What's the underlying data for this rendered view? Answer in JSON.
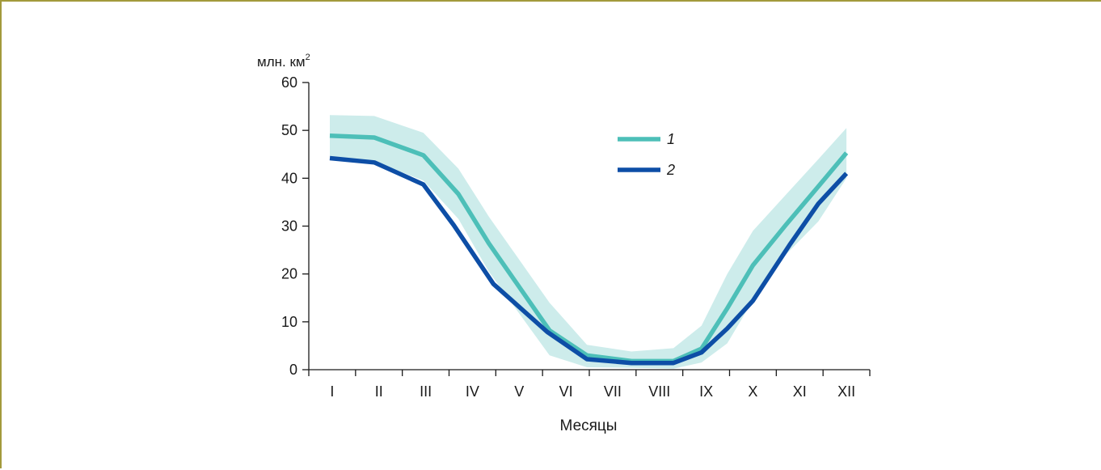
{
  "chart_data": {
    "type": "line",
    "title": "",
    "ylabel_base": "млн. км",
    "ylabel_sup": "2",
    "xlabel": "Месяцы",
    "categories": [
      "I",
      "II",
      "III",
      "IV",
      "V",
      "VI",
      "VII",
      "VIII",
      "IX",
      "X",
      "XI",
      "XII"
    ],
    "x": [
      1,
      2,
      3,
      4,
      5,
      6,
      7,
      8,
      9,
      10,
      11,
      12
    ],
    "yticks": [
      0,
      10,
      20,
      30,
      40,
      50,
      60
    ],
    "ylim": [
      0,
      60
    ],
    "xlim": [
      0.5,
      12.5
    ],
    "grid": false,
    "legend": "inside-top-right",
    "series": [
      {
        "name": "1",
        "color": "#4dbfb8",
        "x": [
          0.95,
          1.9,
          2.95,
          3.7,
          4.35,
          5.65,
          6.45,
          7.4,
          8.3,
          8.9,
          9.45,
          10.0,
          10.7,
          11.4,
          12.0
        ],
        "values": [
          48.9,
          48.5,
          44.8,
          36.7,
          26.4,
          8.2,
          3.0,
          1.8,
          1.8,
          4.4,
          12.8,
          21.8,
          30.2,
          38.3,
          45.3
        ]
      },
      {
        "name": "2",
        "color": "#0d4ea6",
        "x": [
          0.95,
          1.9,
          2.95,
          3.6,
          4.45,
          5.6,
          6.45,
          7.4,
          8.3,
          8.9,
          9.45,
          10.0,
          10.8,
          11.4,
          12.0
        ],
        "values": [
          44.2,
          43.3,
          38.7,
          30.2,
          17.9,
          7.9,
          2.2,
          1.4,
          1.4,
          3.6,
          8.6,
          14.4,
          26.3,
          34.7,
          41.0
        ]
      }
    ],
    "range_band": {
      "color": "#cdeceb",
      "x": [
        0.95,
        1.9,
        2.95,
        3.7,
        4.35,
        5.65,
        6.45,
        7.4,
        8.3,
        8.9,
        9.45,
        10.0,
        10.7,
        11.4,
        12.0
      ],
      "upper": [
        53.2,
        53.0,
        49.5,
        42.0,
        32.0,
        14.0,
        5.2,
        3.8,
        4.5,
        9.2,
        20.0,
        29.0,
        36.5,
        44.0,
        50.5
      ],
      "lower": [
        44.5,
        43.5,
        39.5,
        31.5,
        20.5,
        3.0,
        0.5,
        0.4,
        0.2,
        1.5,
        5.5,
        14.5,
        24.0,
        31.0,
        40.0
      ]
    }
  }
}
